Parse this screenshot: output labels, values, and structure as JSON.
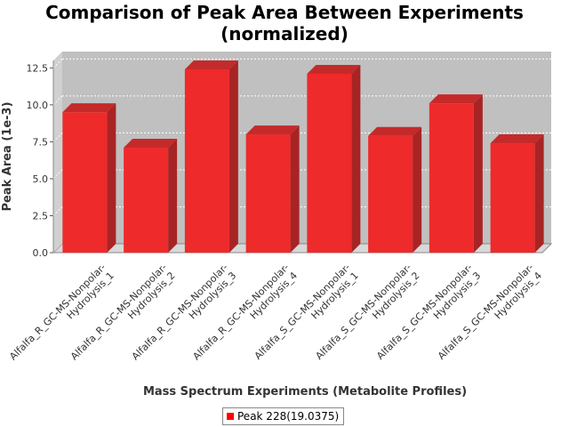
{
  "title": "Comparison of Peak Area Between Experiments\n(normalized)",
  "title_lines": [
    "Comparison of Peak Area Between Experiments",
    "(normalized)"
  ],
  "chart_data": {
    "type": "bar",
    "title": "Comparison of Peak Area Between Experiments (normalized)",
    "xlabel": "Mass Spectrum Experiments (Metabolite Profiles)",
    "ylabel": "Peak Area (1e-3)",
    "ylim": [
      0,
      13.0
    ],
    "yticks": [
      "0.0",
      "2.5",
      "5.0",
      "7.5",
      "10.0",
      "12.5"
    ],
    "grid": true,
    "legend_position": "bottom",
    "categories": [
      "Alfalfa_R_GC-MS-Nonpolar-Hydrolysis_1",
      "Alfalfa_R_GC-MS-Nonpolar-Hydrolysis_2",
      "Alfalfa_R_GC-MS-Nonpolar-Hydrolysis_3",
      "Alfalfa_R_GC-MS-Nonpolar-Hydrolysis_4",
      "Alfalfa_S_GC-MS-Nonpolar-Hydrolysis_1",
      "Alfalfa_S_GC-MS-Nonpolar-Hydrolysis_2",
      "Alfalfa_S_GC-MS-Nonpolar-Hydrolysis_3",
      "Alfalfa_S_GC-MS-Nonpolar-Hydrolysis_4"
    ],
    "category_label_lines": [
      [
        "Alfalfa_R_GC-MS-Nonpolar-",
        "Hydrolysis_1"
      ],
      [
        "Alfalfa_R_GC-MS-Nonpolar-",
        "Hydrolysis_2"
      ],
      [
        "Alfalfa_R_GC-MS-Nonpolar-",
        "Hydrolysis_3"
      ],
      [
        "Alfalfa_R_GC-MS-Nonpolar-",
        "Hydrolysis_4"
      ],
      [
        "Alfalfa_S_GC-MS-Nonpolar-",
        "Hydrolysis_1"
      ],
      [
        "Alfalfa_S_GC-MS-Nonpolar-",
        "Hydrolysis_2"
      ],
      [
        "Alfalfa_S_GC-MS-Nonpolar-",
        "Hydrolysis_3"
      ],
      [
        "Alfalfa_S_GC-MS-Nonpolar-",
        "Hydrolysis_4"
      ]
    ],
    "series": [
      {
        "name": "Peak 228(19.0375)",
        "color": "#ff0000",
        "values": [
          9.5,
          7.1,
          12.4,
          8.0,
          12.1,
          7.9,
          10.1,
          7.4
        ]
      }
    ]
  },
  "colors": {
    "plot_background": "#c0c0c0",
    "bar_face": "#ee2a2a",
    "bar_top": "#c52a2a",
    "bar_side": "#a82424",
    "gridline": "#ffffff"
  }
}
